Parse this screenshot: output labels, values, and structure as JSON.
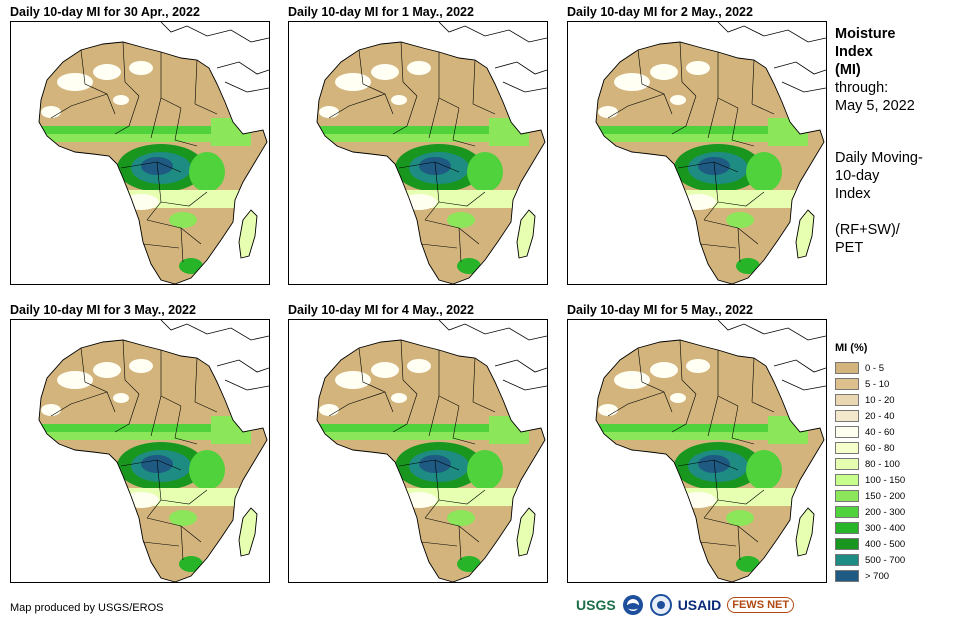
{
  "panels": [
    {
      "title": "Daily 10-day MI for 30 Apr., 2022"
    },
    {
      "title": "Daily 10-day MI for 1 May., 2022"
    },
    {
      "title": "Daily 10-day MI for 2 May., 2022"
    },
    {
      "title": "Daily 10-day MI for 3 May., 2022"
    },
    {
      "title": "Daily 10-day MI for 4 May., 2022"
    },
    {
      "title": "Daily 10-day MI for 5 May., 2022"
    }
  ],
  "side": {
    "line1": "Moisture",
    "line2": "Index",
    "line3": "(MI)",
    "through": "through:",
    "date": "May 5, 2022",
    "desc1": "Daily Moving-",
    "desc2": "10-day",
    "desc3": "Index",
    "formula1": "(RF+SW)/",
    "formula2": "PET"
  },
  "legend": {
    "title": "MI (%)",
    "items": [
      {
        "label": "0 - 5",
        "color": "#d2b47c"
      },
      {
        "label": "5 - 10",
        "color": "#dcc08e"
      },
      {
        "label": "10 - 20",
        "color": "#ead6b0"
      },
      {
        "label": "20 - 40",
        "color": "#f4e8cc"
      },
      {
        "label": "40 - 60",
        "color": "#fffff0"
      },
      {
        "label": "60 - 80",
        "color": "#f4ffcc"
      },
      {
        "label": "80 - 100",
        "color": "#e6ffb0"
      },
      {
        "label": "100 - 150",
        "color": "#c8ff8c"
      },
      {
        "label": "150 - 200",
        "color": "#8ce65a"
      },
      {
        "label": "200 - 300",
        "color": "#50d23c"
      },
      {
        "label": "300 - 400",
        "color": "#28b428"
      },
      {
        "label": "400 - 500",
        "color": "#19961e"
      },
      {
        "label": "500 - 700",
        "color": "#1e8c82"
      },
      {
        "label": "> 700",
        "color": "#1e5a82"
      }
    ]
  },
  "credit": "Map produced by USGS/EROS",
  "logos": {
    "usgs": "USGS",
    "noaa": "NOAA",
    "usaid": "USAID",
    "fews": "FEWS NET"
  }
}
